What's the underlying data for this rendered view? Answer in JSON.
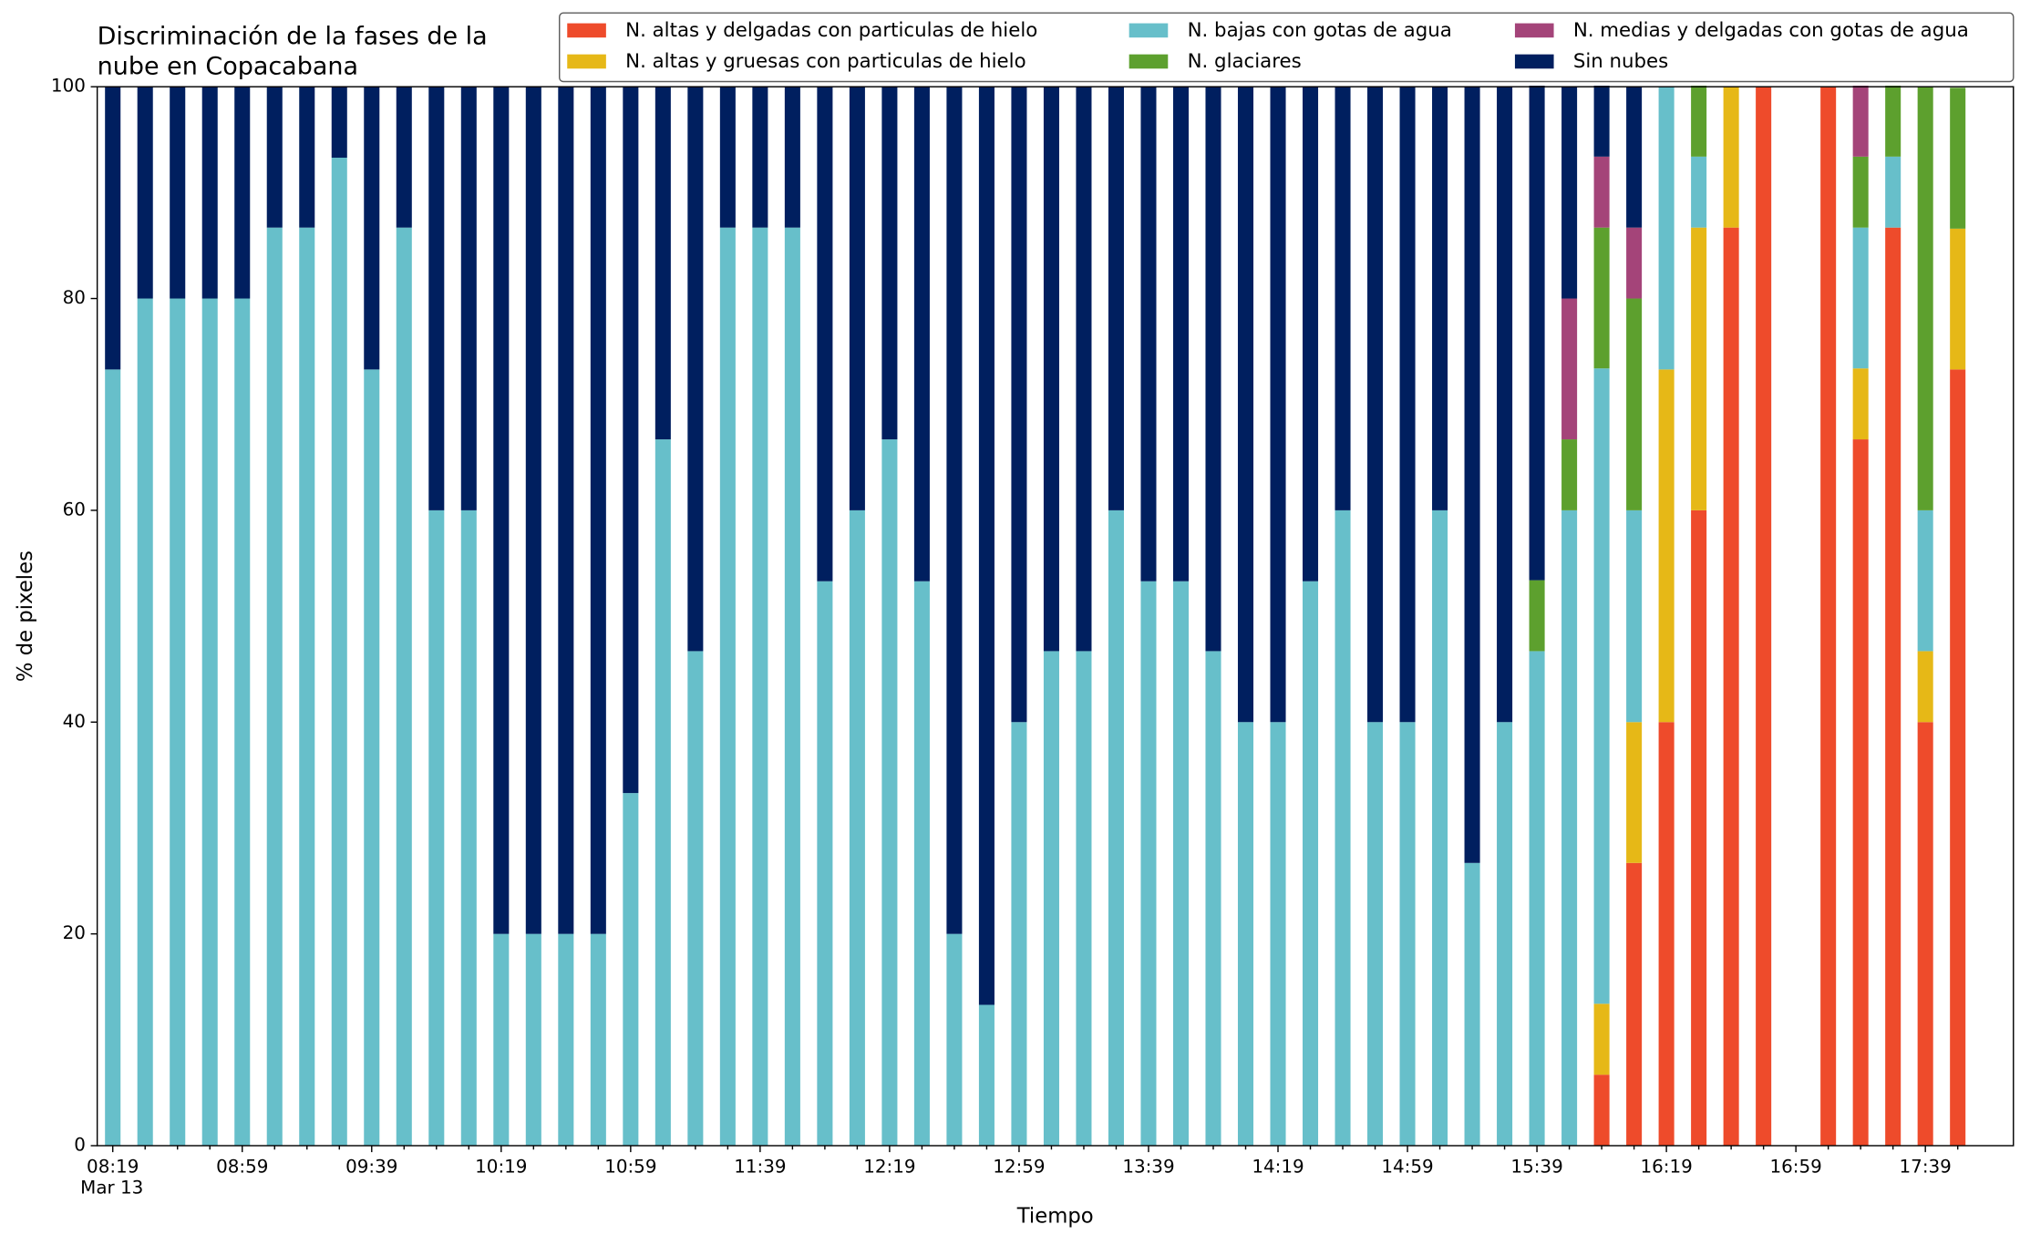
{
  "chart_data": {
    "type": "stacked_bar",
    "title": [
      "Discriminación de la fases de la",
      "nube en Copacabana"
    ],
    "xlabel": "Tiempo",
    "ylabel": "% de pixeles",
    "date_label": "Mar 13",
    "categories": [
      "08:19",
      null,
      null,
      null,
      "08:59",
      null,
      null,
      null,
      "09:39",
      null,
      null,
      null,
      "10:19",
      null,
      null,
      null,
      "10:59",
      null,
      null,
      null,
      "11:39",
      null,
      null,
      null,
      "12:19",
      null,
      null,
      null,
      "12:59",
      null,
      null,
      null,
      "13:39",
      null,
      null,
      null,
      "14:19",
      null,
      null,
      null,
      "14:59",
      null,
      null,
      null,
      "15:39",
      null,
      null,
      null,
      "16:19",
      null,
      null,
      null,
      "16:59",
      null,
      null,
      null,
      "17:39",
      null
    ],
    "series": [
      {
        "name": "N. altas y delgadas con particulas de hielo",
        "color": "#ee4b2b",
        "values": [
          0,
          0,
          0,
          0,
          0,
          0,
          0,
          0,
          0,
          0,
          0,
          0,
          0,
          0,
          0,
          0,
          0,
          0,
          0,
          0,
          0,
          0,
          0,
          0,
          0,
          0,
          0,
          0,
          0,
          0,
          0,
          0,
          0,
          0,
          0,
          0,
          0,
          0,
          0,
          0,
          0,
          0,
          0,
          0,
          0,
          0,
          6.7,
          26.7,
          40,
          60,
          86.7,
          100,
          null,
          100,
          66.7,
          86.7,
          40,
          73.3
        ]
      },
      {
        "name": "N. altas y gruesas con particulas de hielo",
        "color": "#e6b817",
        "values": [
          0,
          0,
          0,
          0,
          0,
          0,
          0,
          0,
          0,
          0,
          0,
          0,
          0,
          0,
          0,
          0,
          0,
          0,
          0,
          0,
          0,
          0,
          0,
          0,
          0,
          0,
          0,
          0,
          0,
          0,
          0,
          0,
          0,
          0,
          0,
          0,
          0,
          0,
          0,
          0,
          0,
          0,
          0,
          0,
          0,
          0,
          6.7,
          13.3,
          33.3,
          26.7,
          13.3,
          0,
          null,
          0,
          6.7,
          0,
          6.7,
          13.3
        ]
      },
      {
        "name": "N. bajas con gotas de agua",
        "color": "#67bfca",
        "values": [
          73.3,
          80,
          80,
          80,
          80,
          86.7,
          86.7,
          93.3,
          73.3,
          86.7,
          60,
          60,
          20,
          20,
          20,
          20,
          33.3,
          66.7,
          46.7,
          86.7,
          86.7,
          86.7,
          53.3,
          60,
          66.7,
          53.3,
          20,
          13.3,
          40,
          46.7,
          46.7,
          60,
          53.3,
          53.3,
          46.7,
          40,
          40,
          53.3,
          60,
          40,
          40,
          60,
          26.7,
          40,
          46.7,
          60,
          60,
          20,
          26.7,
          6.7,
          0,
          0,
          null,
          0,
          13.3,
          6.7,
          13.3,
          0
        ]
      },
      {
        "name": "N. glaciares",
        "color": "#5da02e",
        "values": [
          0,
          0,
          0,
          0,
          0,
          0,
          0,
          0,
          0,
          0,
          0,
          0,
          0,
          0,
          0,
          0,
          0,
          0,
          0,
          0,
          0,
          0,
          0,
          0,
          0,
          0,
          0,
          0,
          0,
          0,
          0,
          0,
          0,
          0,
          0,
          0,
          0,
          0,
          0,
          0,
          0,
          0,
          0,
          0,
          6.7,
          6.7,
          13.3,
          20,
          0,
          6.7,
          0,
          0,
          null,
          0,
          6.7,
          6.7,
          40,
          13.3
        ]
      },
      {
        "name": "N. medias y delgadas con gotas de agua",
        "color": "#a44479",
        "values": [
          0,
          0,
          0,
          0,
          0,
          0,
          0,
          0,
          0,
          0,
          0,
          0,
          0,
          0,
          0,
          0,
          0,
          0,
          0,
          0,
          0,
          0,
          0,
          0,
          0,
          0,
          0,
          0,
          0,
          0,
          0,
          0,
          0,
          0,
          0,
          0,
          0,
          0,
          0,
          0,
          0,
          0,
          0,
          0,
          0,
          13.3,
          6.7,
          6.7,
          0,
          0,
          0,
          0,
          null,
          0,
          6.7,
          0,
          0,
          0
        ]
      },
      {
        "name": "Sin nubes",
        "color": "#001f5f",
        "values": [
          26.7,
          20,
          20,
          20,
          20,
          13.3,
          13.3,
          6.7,
          26.7,
          13.3,
          40,
          40,
          80,
          80,
          80,
          80,
          66.7,
          33.3,
          53.3,
          13.3,
          13.3,
          13.3,
          46.7,
          40,
          33.3,
          46.7,
          80,
          86.7,
          60,
          53.3,
          53.3,
          40,
          46.7,
          46.7,
          53.3,
          60,
          60,
          46.7,
          40,
          60,
          60,
          40,
          73.3,
          60,
          46.7,
          20,
          6.7,
          13.3,
          0,
          0,
          0,
          0,
          null,
          0,
          0,
          0,
          0,
          0
        ]
      }
    ],
    "ylim": [
      0,
      100
    ],
    "yticks": [
      0,
      20,
      40,
      60,
      80,
      100
    ],
    "grid": false,
    "legend": "top right"
  }
}
